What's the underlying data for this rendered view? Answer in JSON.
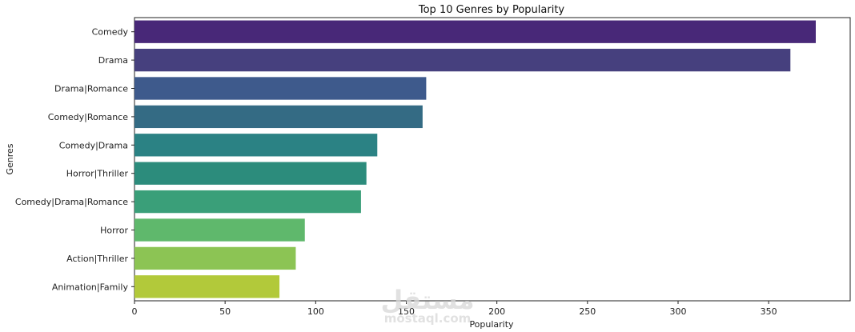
{
  "chart_data": {
    "type": "bar",
    "orientation": "horizontal",
    "title": "Top 10 Genres by Popularity",
    "xlabel": "Popularity",
    "ylabel": "Genres",
    "xlim": [
      0,
      395
    ],
    "xticks": [
      0,
      50,
      100,
      150,
      200,
      250,
      300,
      350
    ],
    "categories": [
      "Comedy",
      "Drama",
      "Drama|Romance",
      "Comedy|Romance",
      "Comedy|Drama",
      "Horror|Thriller",
      "Comedy|Drama|Romance",
      "Horror",
      "Action|Thriller",
      "Animation|Family"
    ],
    "values": [
      376,
      362,
      161,
      159,
      134,
      128,
      125,
      94,
      89,
      80
    ],
    "colors": [
      "#482878",
      "#46407e",
      "#3e5a8c",
      "#346b84",
      "#2b8284",
      "#2c8c7c",
      "#3a9f79",
      "#5fb86c",
      "#8cc454",
      "#b2c93a"
    ],
    "grid": false,
    "legend": "none"
  },
  "watermark": {
    "script": "مستقل",
    "latin": "mostaql.com"
  }
}
